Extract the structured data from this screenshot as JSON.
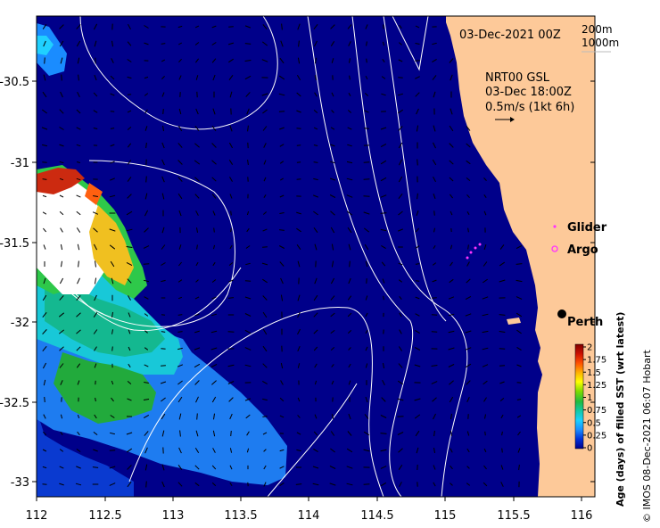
{
  "map": {
    "title": "03-Dec-2021 00Z",
    "depth_legend": [
      "200m",
      "1000m"
    ],
    "current_info": [
      "NRT00 GSL",
      "03-Dec 18:00Z",
      "0.5m/s (1kt 6h)"
    ],
    "x_ticks": [
      "112",
      "112.5",
      "113",
      "113.5",
      "114",
      "114.5",
      "115",
      "115.5",
      "116"
    ],
    "y_ticks": [
      "-30.5",
      "-31",
      "-31.5",
      "-32",
      "-32.5",
      "-33"
    ],
    "legend": [
      {
        "label": "Glider",
        "color": "#ff33ff",
        "marker": "dot"
      },
      {
        "label": "Argo",
        "color": "#ff33ff",
        "marker": "ring"
      }
    ],
    "place": {
      "label": "Perth"
    },
    "colorbar": {
      "title": "Age (days) of filled SST (wrt latest)",
      "ticks": [
        "2",
        "1.75",
        "1.5",
        "1.25",
        "1",
        "0.75",
        "0.5",
        "0.25",
        "0"
      ],
      "colors": [
        "#00008c",
        "#0030d8",
        "#1a8cff",
        "#1ad0ff",
        "#12c9a8",
        "#20bb40",
        "#7fdc00",
        "#ffff00",
        "#ffb000",
        "#ff5000",
        "#cc1000",
        "#800000"
      ]
    },
    "credit": "© IMOS 08-Dec-2021 06:07 Hobart"
  }
}
